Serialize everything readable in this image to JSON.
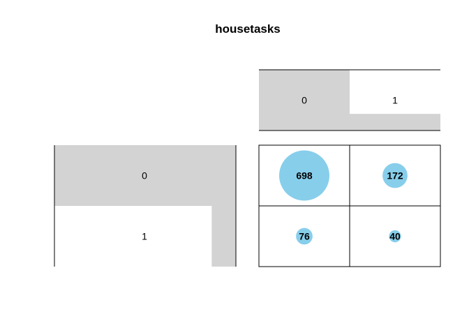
{
  "colors": {
    "bubble": "#87CEEB",
    "shade": "#D3D3D3",
    "line": "#000000"
  },
  "chart_data": {
    "type": "balloonplot",
    "title": "housetasks",
    "col_labels": [
      "0",
      "1"
    ],
    "row_labels": [
      "0",
      "1"
    ],
    "col_marginals": [
      774,
      212
    ],
    "row_marginals": [
      870,
      116
    ],
    "cells": [
      [
        698,
        172
      ],
      [
        76,
        40
      ]
    ]
  }
}
